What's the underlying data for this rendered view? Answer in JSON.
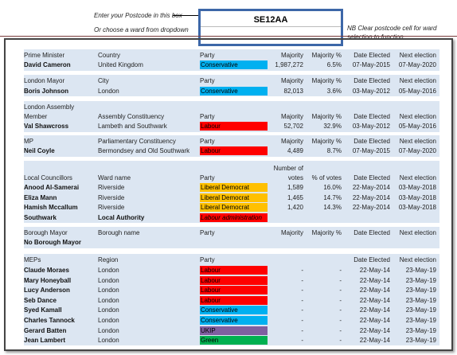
{
  "header": {
    "hint_postcode": "Enter your Postcode in this box",
    "hint_ward": "Or choose a ward from dropdown",
    "postcode_value": "SE12AA",
    "note_line1": "NB Clear postcode cell for ward",
    "note_line2": "selection to function"
  },
  "colors": {
    "Conservative": "#00b0f0",
    "Labour": "#ff0000",
    "Liberal Democrat": "#ffc000",
    "UKIP": "#7f5fa0",
    "Green": "#00b050",
    "Labour administration": "#ff0000"
  },
  "pm": {
    "headers": [
      "Prime Minister",
      "Country",
      "Party",
      "Majority",
      "Majority %",
      "Date Elected",
      "Next election"
    ],
    "name": "David Cameron",
    "area": "United Kingdom",
    "party": "Conservative",
    "majority": "1,987,272",
    "majority_pct": "6.5%",
    "elected": "07-May-2015",
    "next": "07-May-2020"
  },
  "mayor": {
    "headers": [
      "London Mayor",
      "City",
      "Party",
      "Majority",
      "Majority %",
      "Date Elected",
      "Next election"
    ],
    "name": "Boris Johnson",
    "area": "London",
    "party": "Conservative",
    "majority": "82,013",
    "majority_pct": "3.6%",
    "elected": "03-May-2012",
    "next": "05-May-2016"
  },
  "assembly": {
    "title": "London Assembly",
    "headers": [
      "Member",
      "Assembly Constituency",
      "Party",
      "Majority",
      "Majority %",
      "Date Elected",
      "Next election"
    ],
    "name": "Val Shawcross",
    "area": "Lambeth and Southwark",
    "party": "Labour",
    "majority": "52,702",
    "majority_pct": "32.9%",
    "elected": "03-May-2012",
    "next": "05-May-2016"
  },
  "mp": {
    "headers": [
      "MP",
      "Parliamentary Constituency",
      "Party",
      "Majority",
      "Majority %",
      "Date Elected",
      "Next election"
    ],
    "name": "Neil Coyle",
    "area": "Bermondsey and Old Southwark",
    "party": "Labour",
    "majority": "4,489",
    "majority_pct": "8.7%",
    "elected": "07-May-2015",
    "next": "07-May-2020"
  },
  "councillors": {
    "headers": [
      "Local Councillors",
      "Ward name",
      "Party",
      "Number of",
      "votes",
      "% of votes",
      "Date Elected",
      "Next election"
    ],
    "rows": [
      {
        "name": "Anood Al-Samerai",
        "area": "Riverside",
        "party": "Liberal Democrat",
        "votes": "1,589",
        "pct": "16.0%",
        "elected": "22-May-2014",
        "next": "03-May-2018"
      },
      {
        "name": "Eliza Mann",
        "area": "Riverside",
        "party": "Liberal Democrat",
        "votes": "1,465",
        "pct": "14.7%",
        "elected": "22-May-2014",
        "next": "03-May-2018"
      },
      {
        "name": "Hamish Mccallum",
        "area": "Riverside",
        "party": "Liberal Democrat",
        "votes": "1,420",
        "pct": "14.3%",
        "elected": "22-May-2014",
        "next": "03-May-2018"
      }
    ],
    "authority_name": "Southwark",
    "authority_label": "Local Authority",
    "authority_party": "Labour administration"
  },
  "borough": {
    "headers": [
      "Borough Mayor",
      "Borough name",
      "Party",
      "Majority",
      "Majority %",
      "Date Elected",
      "Next election"
    ],
    "name": "No Borough Mayor"
  },
  "meps": {
    "headers": [
      "MEPs",
      "Region",
      "Party",
      "Date Elected",
      "Next election"
    ],
    "rows": [
      {
        "name": "Claude Moraes",
        "area": "London",
        "party": "Labour",
        "maj": "-",
        "pct": "-",
        "elected": "22-May-14",
        "next": "23-May-19"
      },
      {
        "name": "Mary Honeyball",
        "area": "London",
        "party": "Labour",
        "maj": "-",
        "pct": "-",
        "elected": "22-May-14",
        "next": "23-May-19"
      },
      {
        "name": "Lucy Anderson",
        "area": "London",
        "party": "Labour",
        "maj": "-",
        "pct": "-",
        "elected": "22-May-14",
        "next": "23-May-19"
      },
      {
        "name": "Seb Dance",
        "area": "London",
        "party": "Labour",
        "maj": "-",
        "pct": "-",
        "elected": "22-May-14",
        "next": "23-May-19"
      },
      {
        "name": "Syed Kamall",
        "area": "London",
        "party": "Conservative",
        "maj": "-",
        "pct": "-",
        "elected": "22-May-14",
        "next": "23-May-19"
      },
      {
        "name": "Charles Tannock",
        "area": "London",
        "party": "Conservative",
        "maj": "-",
        "pct": "-",
        "elected": "22-May-14",
        "next": "23-May-19"
      },
      {
        "name": "Gerard Batten",
        "area": "London",
        "party": "UKIP",
        "maj": "-",
        "pct": "-",
        "elected": "22-May-14",
        "next": "23-May-19"
      },
      {
        "name": "Jean Lambert",
        "area": "London",
        "party": "Green",
        "maj": "-",
        "pct": "-",
        "elected": "22-May-14",
        "next": "23-May-19"
      }
    ]
  }
}
